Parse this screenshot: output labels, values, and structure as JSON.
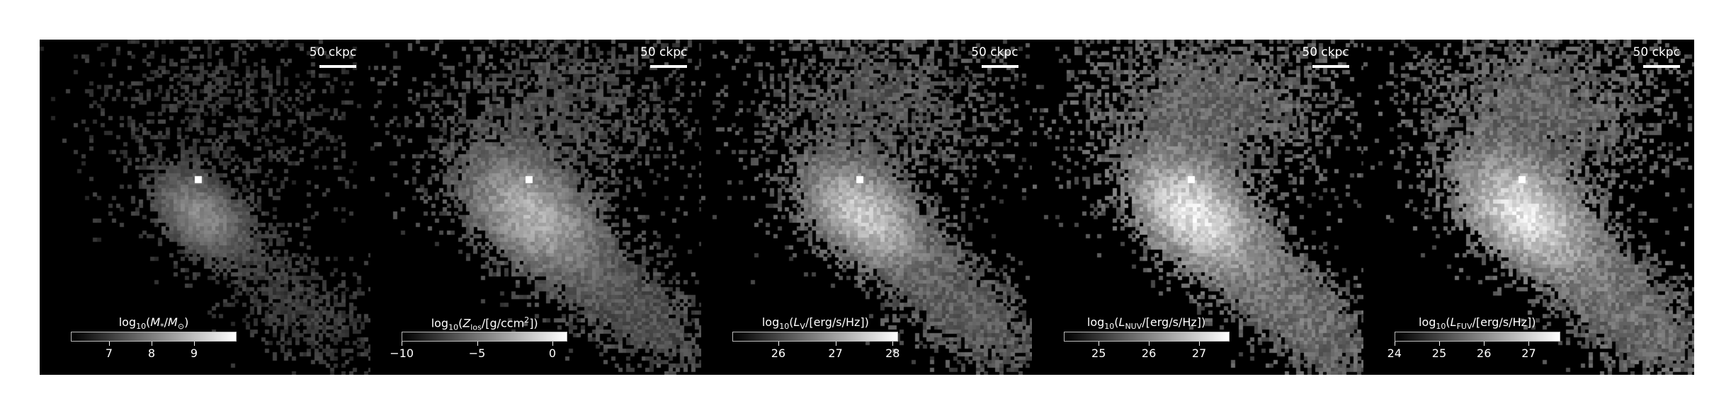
{
  "panels": [
    {
      "scale_label": "50 ckpc",
      "cbar_title_parts": [
        "log",
        "10",
        "(",
        "M",
        "*",
        "/",
        "M",
        "⊙",
        ")"
      ],
      "cbar_min": 6.1,
      "cbar_max": 10.0,
      "ticks": [
        {
          "v": 7,
          "label": "7"
        },
        {
          "v": 8,
          "label": "8"
        },
        {
          "v": 9,
          "label": "9"
        }
      ],
      "brightness": 0.55,
      "tail": 0.35,
      "spread": 0.8,
      "seed": 11
    },
    {
      "scale_label": "50 ckpc",
      "cbar_title_parts": [
        "log",
        "10",
        "(",
        "Z",
        "los",
        "/[g/ccm",
        "2",
        "])"
      ],
      "cbar_min": -10.0,
      "cbar_max": 1.0,
      "ticks": [
        {
          "v": -10,
          "label": "−10"
        },
        {
          "v": -5,
          "label": "−5"
        },
        {
          "v": 0,
          "label": "0"
        }
      ],
      "brightness": 0.7,
      "tail": 0.55,
      "spread": 1.15,
      "seed": 23
    },
    {
      "scale_label": "50 ckpc",
      "cbar_title_parts": [
        "log",
        "10",
        "(",
        "L",
        "V",
        "/[erg/s/Hz])"
      ],
      "cbar_min": 25.2,
      "cbar_max": 28.1,
      "ticks": [
        {
          "v": 26,
          "label": "26"
        },
        {
          "v": 27,
          "label": "27"
        },
        {
          "v": 28,
          "label": "28"
        }
      ],
      "brightness": 0.8,
      "tail": 0.6,
      "spread": 1.0,
      "seed": 37
    },
    {
      "scale_label": "50 ckpc",
      "cbar_title_parts": [
        "log",
        "10",
        "(",
        "L",
        "NUV",
        "/[erg/s/Hz])"
      ],
      "cbar_min": 24.3,
      "cbar_max": 27.6,
      "ticks": [
        {
          "v": 25,
          "label": "25"
        },
        {
          "v": 26,
          "label": "26"
        },
        {
          "v": 27,
          "label": "27"
        }
      ],
      "brightness": 0.9,
      "tail": 0.75,
      "spread": 1.1,
      "seed": 53
    },
    {
      "scale_label": "50 ckpc",
      "cbar_title_parts": [
        "log",
        "10",
        "(",
        "L",
        "FUV",
        "/[erg/s/Hz])"
      ],
      "cbar_min": 24.0,
      "cbar_max": 27.7,
      "ticks": [
        {
          "v": 24,
          "label": "24"
        },
        {
          "v": 25,
          "label": "25"
        },
        {
          "v": 26,
          "label": "26"
        },
        {
          "v": 27,
          "label": "27"
        }
      ],
      "brightness": 0.9,
      "tail": 0.75,
      "spread": 1.1,
      "seed": 71
    }
  ]
}
